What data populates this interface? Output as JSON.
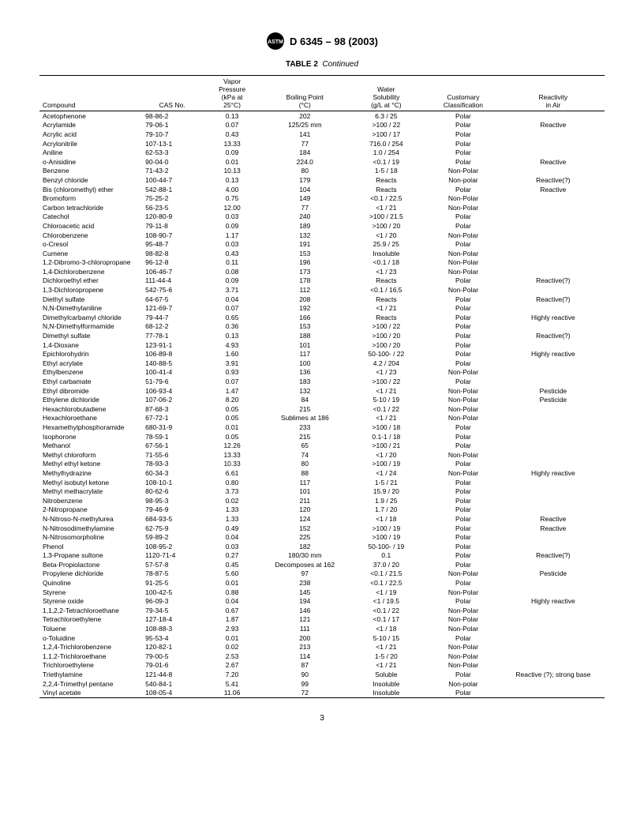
{
  "doc_header": "D 6345 – 98 (2003)",
  "table_label": "TABLE 2",
  "table_continued": "Continued",
  "page_number": "3",
  "columns": [
    {
      "key": "compound",
      "label": "Compound"
    },
    {
      "key": "cas",
      "label": "CAS No."
    },
    {
      "key": "vapor",
      "label": "Vapor\nPressure\n(kPa at\n25°C)"
    },
    {
      "key": "bp",
      "label": "Boiling Point\n(°C)"
    },
    {
      "key": "sol",
      "label": "Water\nSolubility\n(g/L at °C)"
    },
    {
      "key": "class",
      "label": "Customary\nClassification"
    },
    {
      "key": "react",
      "label": "Reactivity\nin Air"
    }
  ],
  "rows": [
    {
      "compound": "Acetophenone",
      "cas": "98-86-2",
      "vapor": "0.13",
      "bp": "202",
      "sol": "6.3 / 25",
      "class": "Polar",
      "react": ""
    },
    {
      "compound": "Acrylamide",
      "cas": "79-06-1",
      "vapor": "0.07",
      "bp": "125/25 mm",
      "sol": ">100 / 22",
      "class": "Polar",
      "react": "Reactive"
    },
    {
      "compound": "Acrylic acid",
      "cas": "79-10-7",
      "vapor": "0.43",
      "bp": "141",
      "sol": ">100 / 17",
      "class": "Polar",
      "react": ""
    },
    {
      "compound": "Acrylonitrile",
      "cas": "107-13-1",
      "vapor": "13.33",
      "bp": "77",
      "sol": "716.0 / 254",
      "class": "Polar",
      "react": ""
    },
    {
      "compound": "Aniline",
      "cas": "62-53-3",
      "vapor": "0.09",
      "bp": "184",
      "sol": "1.0 / 254",
      "class": "Polar",
      "react": ""
    },
    {
      "compound": "o-Anisidine",
      "cas": "90-04-0",
      "vapor": "0.01",
      "bp": "224.0",
      "sol": "<0.1 / 19",
      "class": "Polar",
      "react": "Reactive"
    },
    {
      "compound": "Benzene",
      "cas": "71-43-2",
      "vapor": "10.13",
      "bp": "80",
      "sol": "1-5 / 18",
      "class": "Non-Polar",
      "react": ""
    },
    {
      "compound": "Benzyl chloride",
      "cas": "100-44-7",
      "vapor": "0.13",
      "bp": "179",
      "sol": "Reacts",
      "class": "Non-polar",
      "react": "Reactive(?)"
    },
    {
      "compound": "Bis (chloromethyl) ether",
      "cas": "542-88-1",
      "vapor": "4.00",
      "bp": "104",
      "sol": "Reacts",
      "class": "Polar",
      "react": "Reactive"
    },
    {
      "compound": "Bromoform",
      "cas": "75-25-2",
      "vapor": "0.75",
      "bp": "149",
      "sol": "<0.1 / 22.5",
      "class": "Non-Polar",
      "react": ""
    },
    {
      "compound": "Carbon tetrachloride",
      "cas": "56-23-5",
      "vapor": "12.00",
      "bp": "77",
      "sol": "<1 / 21",
      "class": "Non-Polar",
      "react": ""
    },
    {
      "compound": "Catechol",
      "cas": "120-80-9",
      "vapor": "0.03",
      "bp": "240",
      "sol": ">100 / 21.5",
      "class": "Polar",
      "react": ""
    },
    {
      "compound": "Chloroacetic acid",
      "cas": "79-11-8",
      "vapor": "0.09",
      "bp": "189",
      "sol": ">100 / 20",
      "class": "Polar",
      "react": ""
    },
    {
      "compound": "Chlorobenzene",
      "cas": "108-90-7",
      "vapor": "1.17",
      "bp": "132",
      "sol": "<1 / 20",
      "class": "Non-Polar",
      "react": ""
    },
    {
      "compound": "o-Cresol",
      "cas": "95-48-7",
      "vapor": "0.03",
      "bp": "191",
      "sol": "25.9 / 25",
      "class": "Polar",
      "react": ""
    },
    {
      "compound": "Cumene",
      "cas": "98-82-8",
      "vapor": "0.43",
      "bp": "153",
      "sol": "Insoluble",
      "class": "Non-Polar",
      "react": ""
    },
    {
      "compound": "1,2-Dibromo-3-chloropropane",
      "cas": "96-12-8",
      "vapor": "0.11",
      "bp": "196",
      "sol": "<0.1 / 18",
      "class": "Non-Polar",
      "react": ""
    },
    {
      "compound": "1,4-Dichlorobenzene",
      "cas": "106-46-7",
      "vapor": "0.08",
      "bp": "173",
      "sol": "<1 / 23",
      "class": "Non-Polar",
      "react": ""
    },
    {
      "compound": "Dichloroethyl ether",
      "cas": "111-44-4",
      "vapor": "0.09",
      "bp": "178",
      "sol": "Reacts",
      "class": "Polar",
      "react": "Reactive(?)"
    },
    {
      "compound": "1,3-Dichloropropene",
      "cas": "542-75-6",
      "vapor": "3.71",
      "bp": "112",
      "sol": "<0.1 / 16.5",
      "class": "Non-Polar",
      "react": ""
    },
    {
      "compound": "Diethyl sulfate",
      "cas": "64-67-5",
      "vapor": "0.04",
      "bp": "208",
      "sol": "Reacts",
      "class": "Polar",
      "react": "Reactive(?)"
    },
    {
      "compound": "N,N-Dimethylaniline",
      "cas": "121-69-7",
      "vapor": "0.07",
      "bp": "192",
      "sol": "<1 / 21",
      "class": "Polar",
      "react": ""
    },
    {
      "compound": "Dimethylcarbamyl chloride",
      "cas": "79-44-7",
      "vapor": "0.65",
      "bp": "166",
      "sol": "Reacts",
      "class": "Polar",
      "react": "Highly reactive"
    },
    {
      "compound": "N,N-Dimethylformamide",
      "cas": "68-12-2",
      "vapor": "0.36",
      "bp": "153",
      "sol": ">100 / 22",
      "class": "Polar",
      "react": ""
    },
    {
      "compound": "Dimethyl sulfate",
      "cas": "77-78-1",
      "vapor": "0.13",
      "bp": "188",
      "sol": ">100 / 20",
      "class": "Polar",
      "react": "Reactive(?)"
    },
    {
      "compound": "1,4-Dioxane",
      "cas": "123-91-1",
      "vapor": "4.93",
      "bp": "101",
      "sol": ">100 / 20",
      "class": "Polar",
      "react": ""
    },
    {
      "compound": "Epichlorohydrin",
      "cas": "106-89-8",
      "vapor": "1.60",
      "bp": "117",
      "sol": "50-100- / 22",
      "class": "Polar",
      "react": "Highly reactive"
    },
    {
      "compound": "Ethyl acrylate",
      "cas": "140-88-5",
      "vapor": "3.91",
      "bp": "100",
      "sol": "4.2 / 204",
      "class": "Polar",
      "react": ""
    },
    {
      "compound": "Ethylbenzene",
      "cas": "100-41-4",
      "vapor": "0.93",
      "bp": "136",
      "sol": "<1 / 23",
      "class": "Non-Polar",
      "react": ""
    },
    {
      "compound": "Ethyl carbamate",
      "cas": "51-79-6",
      "vapor": "0.07",
      "bp": "183",
      "sol": ">100 / 22",
      "class": "Polar",
      "react": ""
    },
    {
      "compound": "Ethyl dibromide",
      "cas": "106-93-4",
      "vapor": "1.47",
      "bp": "132",
      "sol": "<1 / 21",
      "class": "Non-Polar",
      "react": "Pesticide"
    },
    {
      "compound": "Ethylene dichloride",
      "cas": "107-06-2",
      "vapor": "8.20",
      "bp": "84",
      "sol": "5-10 / 19",
      "class": "Non-Polar",
      "react": "Pesticide"
    },
    {
      "compound": "Hexachlorobutadiene",
      "cas": "87-68-3",
      "vapor": "0.05",
      "bp": "215",
      "sol": "<0.1 / 22",
      "class": "Non-Polar",
      "react": ""
    },
    {
      "compound": "Hexachloroethane",
      "cas": "67-72-1",
      "vapor": "0.05",
      "bp": "Sublimes at 186",
      "sol": "<1 / 21",
      "class": "Non-Polar",
      "react": ""
    },
    {
      "compound": "Hexamethylphosphoramide",
      "cas": "680-31-9",
      "vapor": "0.01",
      "bp": "233",
      "sol": ">100 / 18",
      "class": "Polar",
      "react": ""
    },
    {
      "compound": "Isophorone",
      "cas": "78-59-1",
      "vapor": "0.05",
      "bp": "215",
      "sol": "0.1-1 / 18",
      "class": "Polar",
      "react": ""
    },
    {
      "compound": "Methanol",
      "cas": "67-56-1",
      "vapor": "12.26",
      "bp": "65",
      "sol": ">100 / 21",
      "class": "Polar",
      "react": ""
    },
    {
      "compound": "Methyl chloroform",
      "cas": "71-55-6",
      "vapor": "13.33",
      "bp": "74",
      "sol": "<1 / 20",
      "class": "Non-Polar",
      "react": ""
    },
    {
      "compound": "Methyl ethyl ketone",
      "cas": "78-93-3",
      "vapor": "10.33",
      "bp": "80",
      "sol": ">100 / 19",
      "class": "Polar",
      "react": ""
    },
    {
      "compound": "Methylhydrazine",
      "cas": "60-34-3",
      "vapor": "6.61",
      "bp": "88",
      "sol": "<1 / 24",
      "class": "Non-Polar",
      "react": "Highly reactive"
    },
    {
      "compound": "Methyl isobutyl ketone",
      "cas": "108-10-1",
      "vapor": "0.80",
      "bp": "117",
      "sol": "1-5 / 21",
      "class": "Polar",
      "react": ""
    },
    {
      "compound": "Methyl methacrylate",
      "cas": "80-62-6",
      "vapor": "3.73",
      "bp": "101",
      "sol": "15.9 / 20",
      "class": "Polar",
      "react": ""
    },
    {
      "compound": "Nitrobenzene",
      "cas": "98-95-3",
      "vapor": "0.02",
      "bp": "211",
      "sol": "1.9 / 25",
      "class": "Polar",
      "react": ""
    },
    {
      "compound": "2-Nitropropane",
      "cas": "79-46-9",
      "vapor": "1.33",
      "bp": "120",
      "sol": "1.7 / 20",
      "class": "Polar",
      "react": ""
    },
    {
      "compound": "N-Nitroso-N-methylurea",
      "cas": "684-93-5",
      "vapor": "1.33",
      "bp": "124",
      "sol": "<1 / 18",
      "class": "Polar",
      "react": "Reactive"
    },
    {
      "compound": "N-Nitrosodimethylamine",
      "cas": "62-75-9",
      "vapor": "0.49",
      "bp": "152",
      "sol": ">100 / 19",
      "class": "Polar",
      "react": "Reactive"
    },
    {
      "compound": "N-Nitrosomorpholine",
      "cas": "59-89-2",
      "vapor": "0.04",
      "bp": "225",
      "sol": ">100 / 19",
      "class": "Polar",
      "react": ""
    },
    {
      "compound": "Phenol",
      "cas": "108-95-2",
      "vapor": "0.03",
      "bp": "182",
      "sol": "50-100- / 19",
      "class": "Polar",
      "react": ""
    },
    {
      "compound": "1,3-Propane sultone",
      "cas": "1120-71-4",
      "vapor": "0.27",
      "bp": "180/30 mm",
      "sol": "0.1",
      "class": "Polar",
      "react": "Reactive(?)"
    },
    {
      "compound": "Beta-Propiolactone",
      "cas": "57-57-8",
      "vapor": "0.45",
      "bp": "Decomposes at 162",
      "sol": "37.0 / 20",
      "class": "Polar",
      "react": ""
    },
    {
      "compound": "Propylene dichloride",
      "cas": "78-87-5",
      "vapor": "5.60",
      "bp": "97",
      "sol": "<0.1 / 21.5",
      "class": "Non-Polar",
      "react": "Pesticide"
    },
    {
      "compound": "Quinoline",
      "cas": "91-25-5",
      "vapor": "0.01",
      "bp": "238",
      "sol": "<0.1 / 22.5",
      "class": "Polar",
      "react": ""
    },
    {
      "compound": "Styrene",
      "cas": "100-42-5",
      "vapor": "0.88",
      "bp": "145",
      "sol": "<1 / 19",
      "class": "Non-Polar",
      "react": ""
    },
    {
      "compound": "Styrene oxide",
      "cas": "96-09-3",
      "vapor": "0.04",
      "bp": "194",
      "sol": "<1 / 19.5",
      "class": "Polar",
      "react": "Highly reactive"
    },
    {
      "compound": "1,1,2,2-Tetrachloroethane",
      "cas": "79-34-5",
      "vapor": "0.67",
      "bp": "146",
      "sol": "<0.1 / 22",
      "class": "Non-Polar",
      "react": ""
    },
    {
      "compound": "Tetrachloroethylene",
      "cas": "127-18-4",
      "vapor": "1.87",
      "bp": "121",
      "sol": "<0.1 / 17",
      "class": "Non-Polar",
      "react": ""
    },
    {
      "compound": "Toluene",
      "cas": "108-88-3",
      "vapor": "2.93",
      "bp": "111",
      "sol": "<1 / 18",
      "class": "Non-Polar",
      "react": ""
    },
    {
      "compound": "o-Toluidine",
      "cas": "95-53-4",
      "vapor": "0.01",
      "bp": "200",
      "sol": "5-10 / 15",
      "class": "Polar",
      "react": ""
    },
    {
      "compound": "1,2,4-Trichlorobenzene",
      "cas": "120-82-1",
      "vapor": "0.02",
      "bp": "213",
      "sol": "<1 / 21",
      "class": "Non-Polar",
      "react": ""
    },
    {
      "compound": "1,1,2-Trichloroethane",
      "cas": "79-00-5",
      "vapor": "2.53",
      "bp": "114",
      "sol": "1-5 / 20",
      "class": "Non-Polar",
      "react": ""
    },
    {
      "compound": "Trichloroethylene",
      "cas": "79-01-6",
      "vapor": "2.67",
      "bp": "87",
      "sol": "<1 / 21",
      "class": "Non-Polar",
      "react": ""
    },
    {
      "compound": "Triethylamine",
      "cas": "121-44-8",
      "vapor": "7.20",
      "bp": "90",
      "sol": "Soluble",
      "class": "Polar",
      "react": "Reactive (?); strong base"
    },
    {
      "compound": "2,2,4-Trimethyl pentane",
      "cas": "540-84-1",
      "vapor": "5.41",
      "bp": "99",
      "sol": "Insoluble",
      "class": "Non-polar",
      "react": ""
    },
    {
      "compound": "Vinyl acetate",
      "cas": "108-05-4",
      "vapor": "11.06",
      "bp": "72",
      "sol": "Insoluble",
      "class": "Polar",
      "react": ""
    }
  ],
  "col_widths": [
    "120px",
    "70px",
    "70px",
    "100px",
    "90px",
    "90px",
    "120px"
  ]
}
